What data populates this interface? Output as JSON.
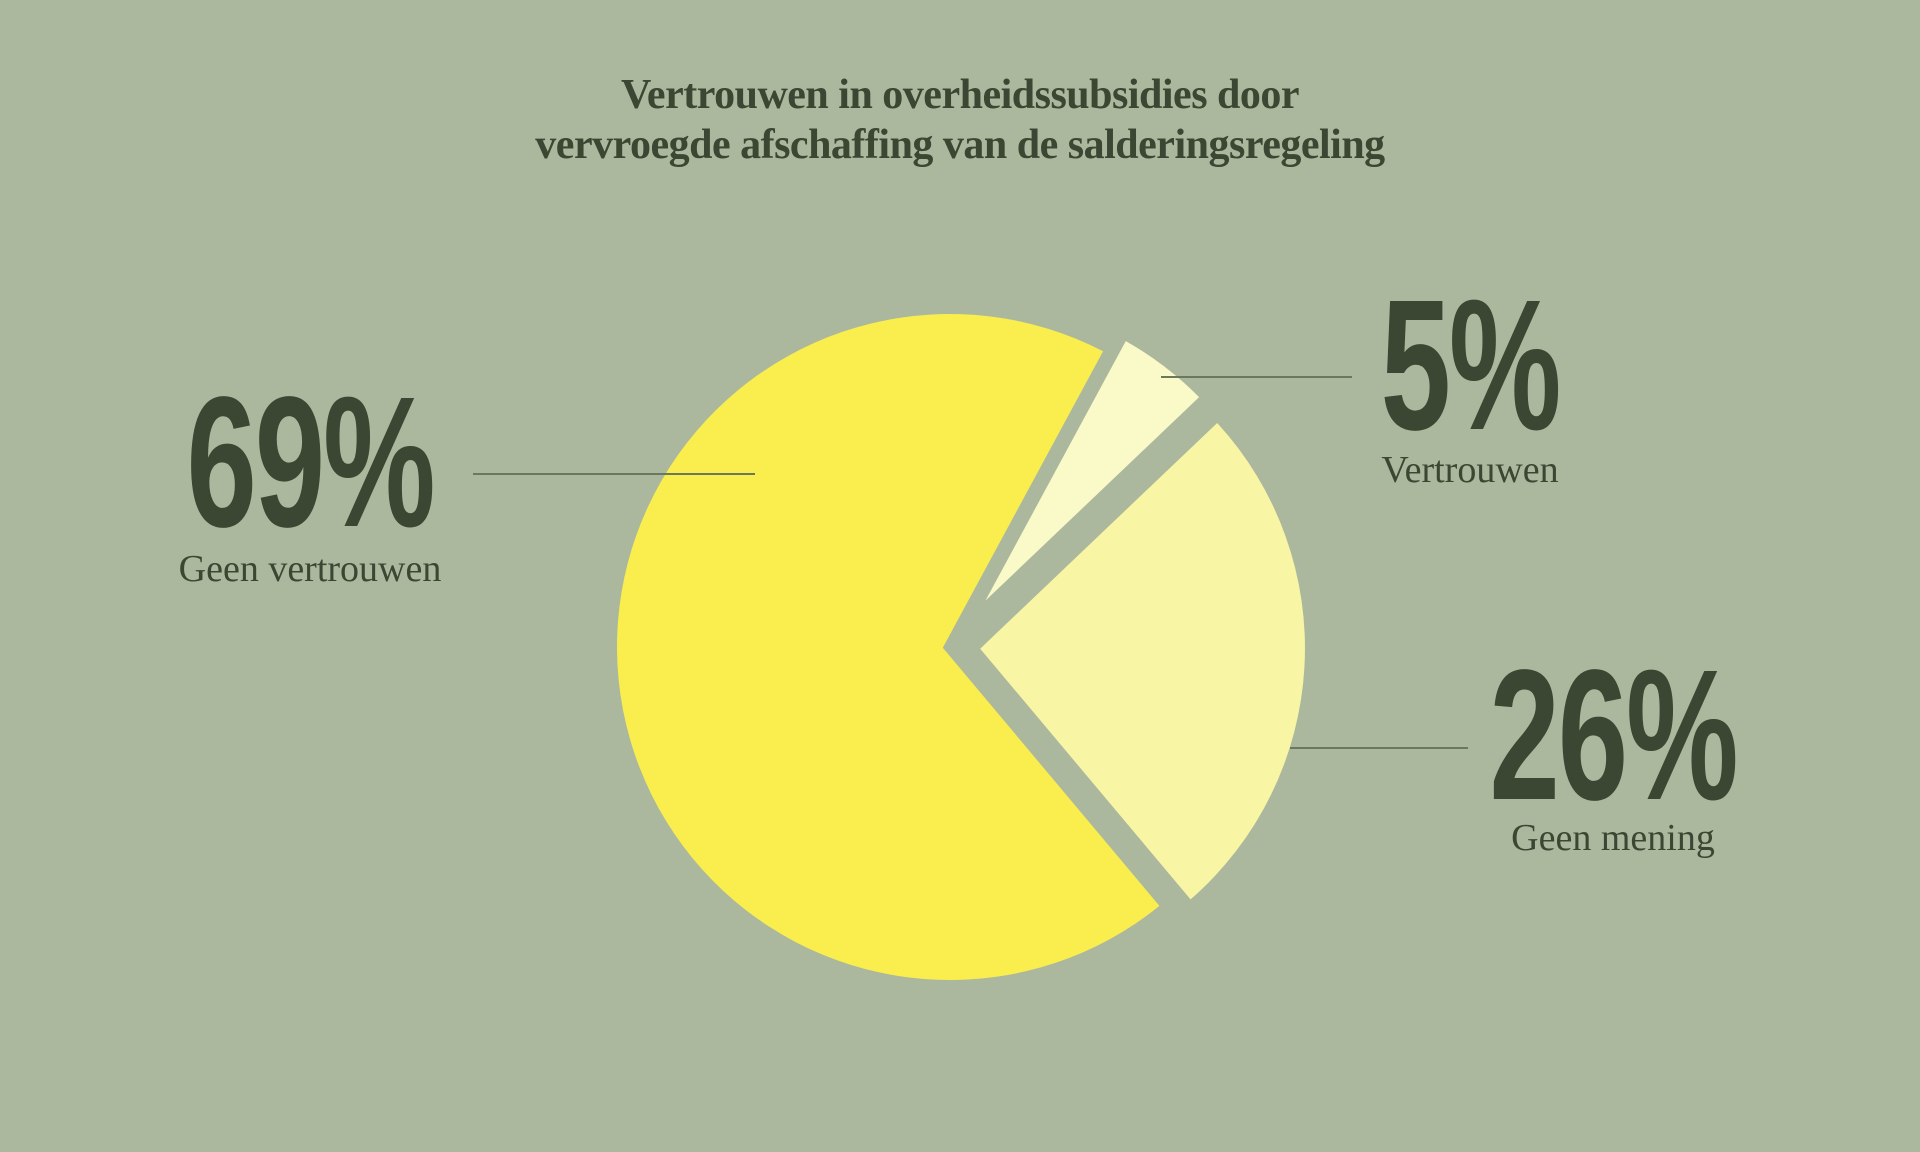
{
  "title": {
    "line1": "Vertrouwen in overheidssubsidies door",
    "line2": "vervroegde afschaffing van de salderingsregeling"
  },
  "colors": {
    "background": "#ACB89E",
    "text": "#3C4733",
    "leader_line": "#6A785D"
  },
  "chart_data": {
    "type": "pie",
    "title": "Vertrouwen in overheidssubsidies door vervroegde afschaffing van de salderingsregeling",
    "direction": "clockwise",
    "start_angle_deg": 140,
    "legend_position": "callouts",
    "slices": [
      {
        "label": "Geen vertrouwen",
        "value": 69,
        "display_value": "69%",
        "color": "#F9EE4E",
        "exploded": false
      },
      {
        "label": "Vertrouwen",
        "value": 5,
        "display_value": "5%",
        "color": "#FAF9C8",
        "exploded": true
      },
      {
        "label": "Geen mening",
        "value": 26,
        "display_value": "26%",
        "color": "#F8F5A5",
        "exploded": true
      }
    ]
  }
}
